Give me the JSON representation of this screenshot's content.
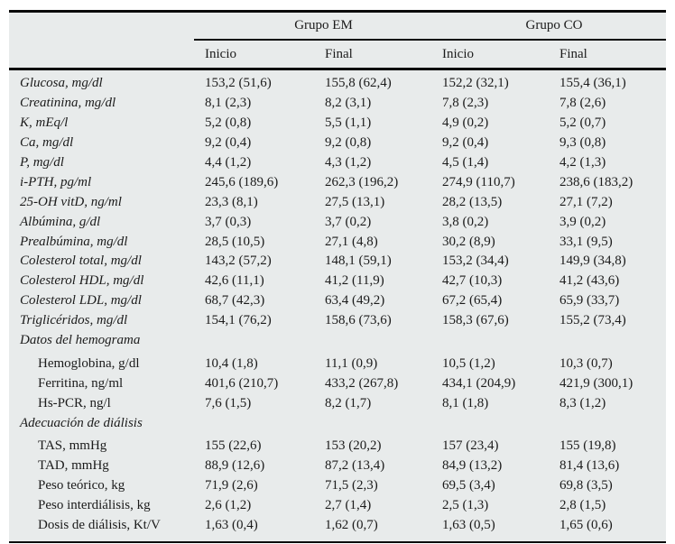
{
  "table": {
    "colors": {
      "background": "#e8ebeb",
      "rule": "#0a0a0a",
      "text": "#1b1b1b"
    },
    "groups": [
      {
        "label": "Grupo EM"
      },
      {
        "label": "Grupo CO"
      }
    ],
    "subheaders": [
      "Inicio",
      "Final",
      "Inicio",
      "Final"
    ],
    "rows": [
      {
        "label": "Glucosa, mg/dl",
        "values": [
          "153,2 (51,6)",
          "155,8 (62,4)",
          "152,2 (32,1)",
          "155,4 (36,1)"
        ]
      },
      {
        "label": "Creatinina, mg/dl",
        "values": [
          "8,1 (2,3)",
          "8,2 (3,1)",
          "7,8 (2,3)",
          "7,8 (2,6)"
        ]
      },
      {
        "label": "K, mEq/l",
        "values": [
          "5,2 (0,8)",
          "5,5 (1,1)",
          "4,9 (0,2)",
          "5,2 (0,7)"
        ]
      },
      {
        "label": "Ca, mg/dl",
        "values": [
          "9,2 (0,4)",
          "9,2 (0,8)",
          "9,2 (0,4)",
          "9,3 (0,8)"
        ]
      },
      {
        "label": "P, mg/dl",
        "values": [
          "4,4 (1,2)",
          "4,3 (1,2)",
          "4,5 (1,4)",
          "4,2 (1,3)"
        ]
      },
      {
        "label": "i-PTH, pg/ml",
        "values": [
          "245,6 (189,6)",
          "262,3 (196,2)",
          "274,9 (110,7)",
          "238,6 (183,2)"
        ]
      },
      {
        "label": "25-OH vitD, ng/ml",
        "values": [
          "23,3 (8,1)",
          "27,5 (13,1)",
          "28,2 (13,5)",
          "27,1 (7,2)"
        ]
      },
      {
        "label": "Albúmina, g/dl",
        "values": [
          "3,7 (0,3)",
          "3,7 (0,2)",
          "3,8 (0,2)",
          "3,9 (0,2)"
        ]
      },
      {
        "label": "Prealbúmina, mg/dl",
        "values": [
          "28,5 (10,5)",
          "27,1 (4,8)",
          "30,2 (8,9)",
          "33,1 (9,5)"
        ]
      },
      {
        "label": "Colesterol total, mg/dl",
        "values": [
          "143,2 (57,2)",
          "148,1 (59,1)",
          "153,2 (34,4)",
          "149,9 (34,8)"
        ]
      },
      {
        "label": "Colesterol HDL, mg/dl",
        "values": [
          "42,6 (11,1)",
          "41,2 (11,9)",
          "42,7 (10,3)",
          "41,2 (43,6)"
        ]
      },
      {
        "label": "Colesterol LDL, mg/dl",
        "values": [
          "68,7 (42,3)",
          "63,4 (49,2)",
          "67,2 (65,4)",
          "65,9 (33,7)"
        ]
      },
      {
        "label": "Triglicéridos, mg/dl",
        "values": [
          "154,1 (76,2)",
          "158,6 (73,6)",
          "158,3 (67,6)",
          "155,2 (73,4)"
        ]
      },
      {
        "label": "Datos del hemograma",
        "section": true
      },
      {
        "label": "Hemoglobina, g/dl",
        "values": [
          "10,4 (1,8)",
          "11,1 (0,9)",
          "10,5 (1,2)",
          "10,3 (0,7)"
        ]
      },
      {
        "label": "Ferritina, ng/ml",
        "values": [
          "401,6 (210,7)",
          "433,2 (267,8)",
          "434,1 (204,9)",
          "421,9 (300,1)"
        ]
      },
      {
        "label": "Hs-PCR, ng/l",
        "values": [
          "7,6 (1,5)",
          "8,2 (1,7)",
          "8,1 (1,8)",
          "8,3 (1,2)"
        ]
      },
      {
        "label": "Adecuación de diálisis",
        "section": true
      },
      {
        "label": "TAS, mmHg",
        "values": [
          "155 (22,6)",
          "153 (20,2)",
          "157 (23,4)",
          "155 (19,8)"
        ]
      },
      {
        "label": "TAD, mmHg",
        "values": [
          "88,9 (12,6)",
          "87,2 (13,4)",
          "84,9 (13,2)",
          "81,4 (13,6)"
        ]
      },
      {
        "label": "Peso teórico, kg",
        "values": [
          "71,9 (2,6)",
          "71,5 (2,3)",
          "69,5 (3,4)",
          "69,8 (3,5)"
        ]
      },
      {
        "label": "Peso interdiálisis, kg",
        "values": [
          "2,6 (1,2)",
          "2,7 (1,4)",
          "2,5 (1,3)",
          "2,8 (1,5)"
        ]
      },
      {
        "label": "Dosis de diálisis, Kt/V",
        "values": [
          "1,63 (0,4)",
          "1,62 (0,7)",
          "1,63 (0,5)",
          "1,65 (0,6)"
        ]
      }
    ]
  }
}
